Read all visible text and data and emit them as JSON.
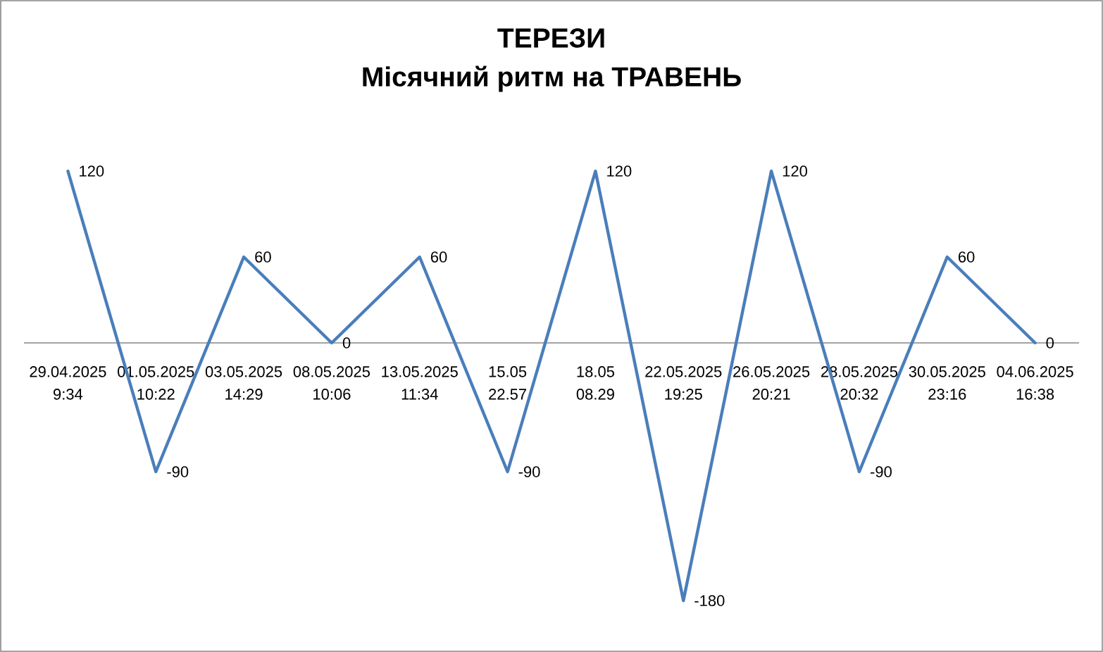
{
  "chart_data": {
    "type": "line",
    "title": "ТЕРЕЗИ",
    "subtitle": "Місячний ритм на ТРАВЕНЬ",
    "categories": [
      "29.04.2025 9:34",
      "01.05.2025 10:22",
      "03.05.2025 14:29",
      "08.05.2025 10:06",
      "13.05.2025 11:34",
      "15.05 22.57",
      "18.05 08.29",
      "22.05.2025 19:25",
      "26.05.2025 20:21",
      "28.05.2025 20:32",
      "30.05.2025 23:16",
      "04.06.2025 16:38"
    ],
    "values": [
      120,
      -90,
      60,
      0,
      60,
      -90,
      120,
      -180,
      120,
      -90,
      60,
      0
    ],
    "color": "#4a7ebb",
    "data_labels": true
  }
}
